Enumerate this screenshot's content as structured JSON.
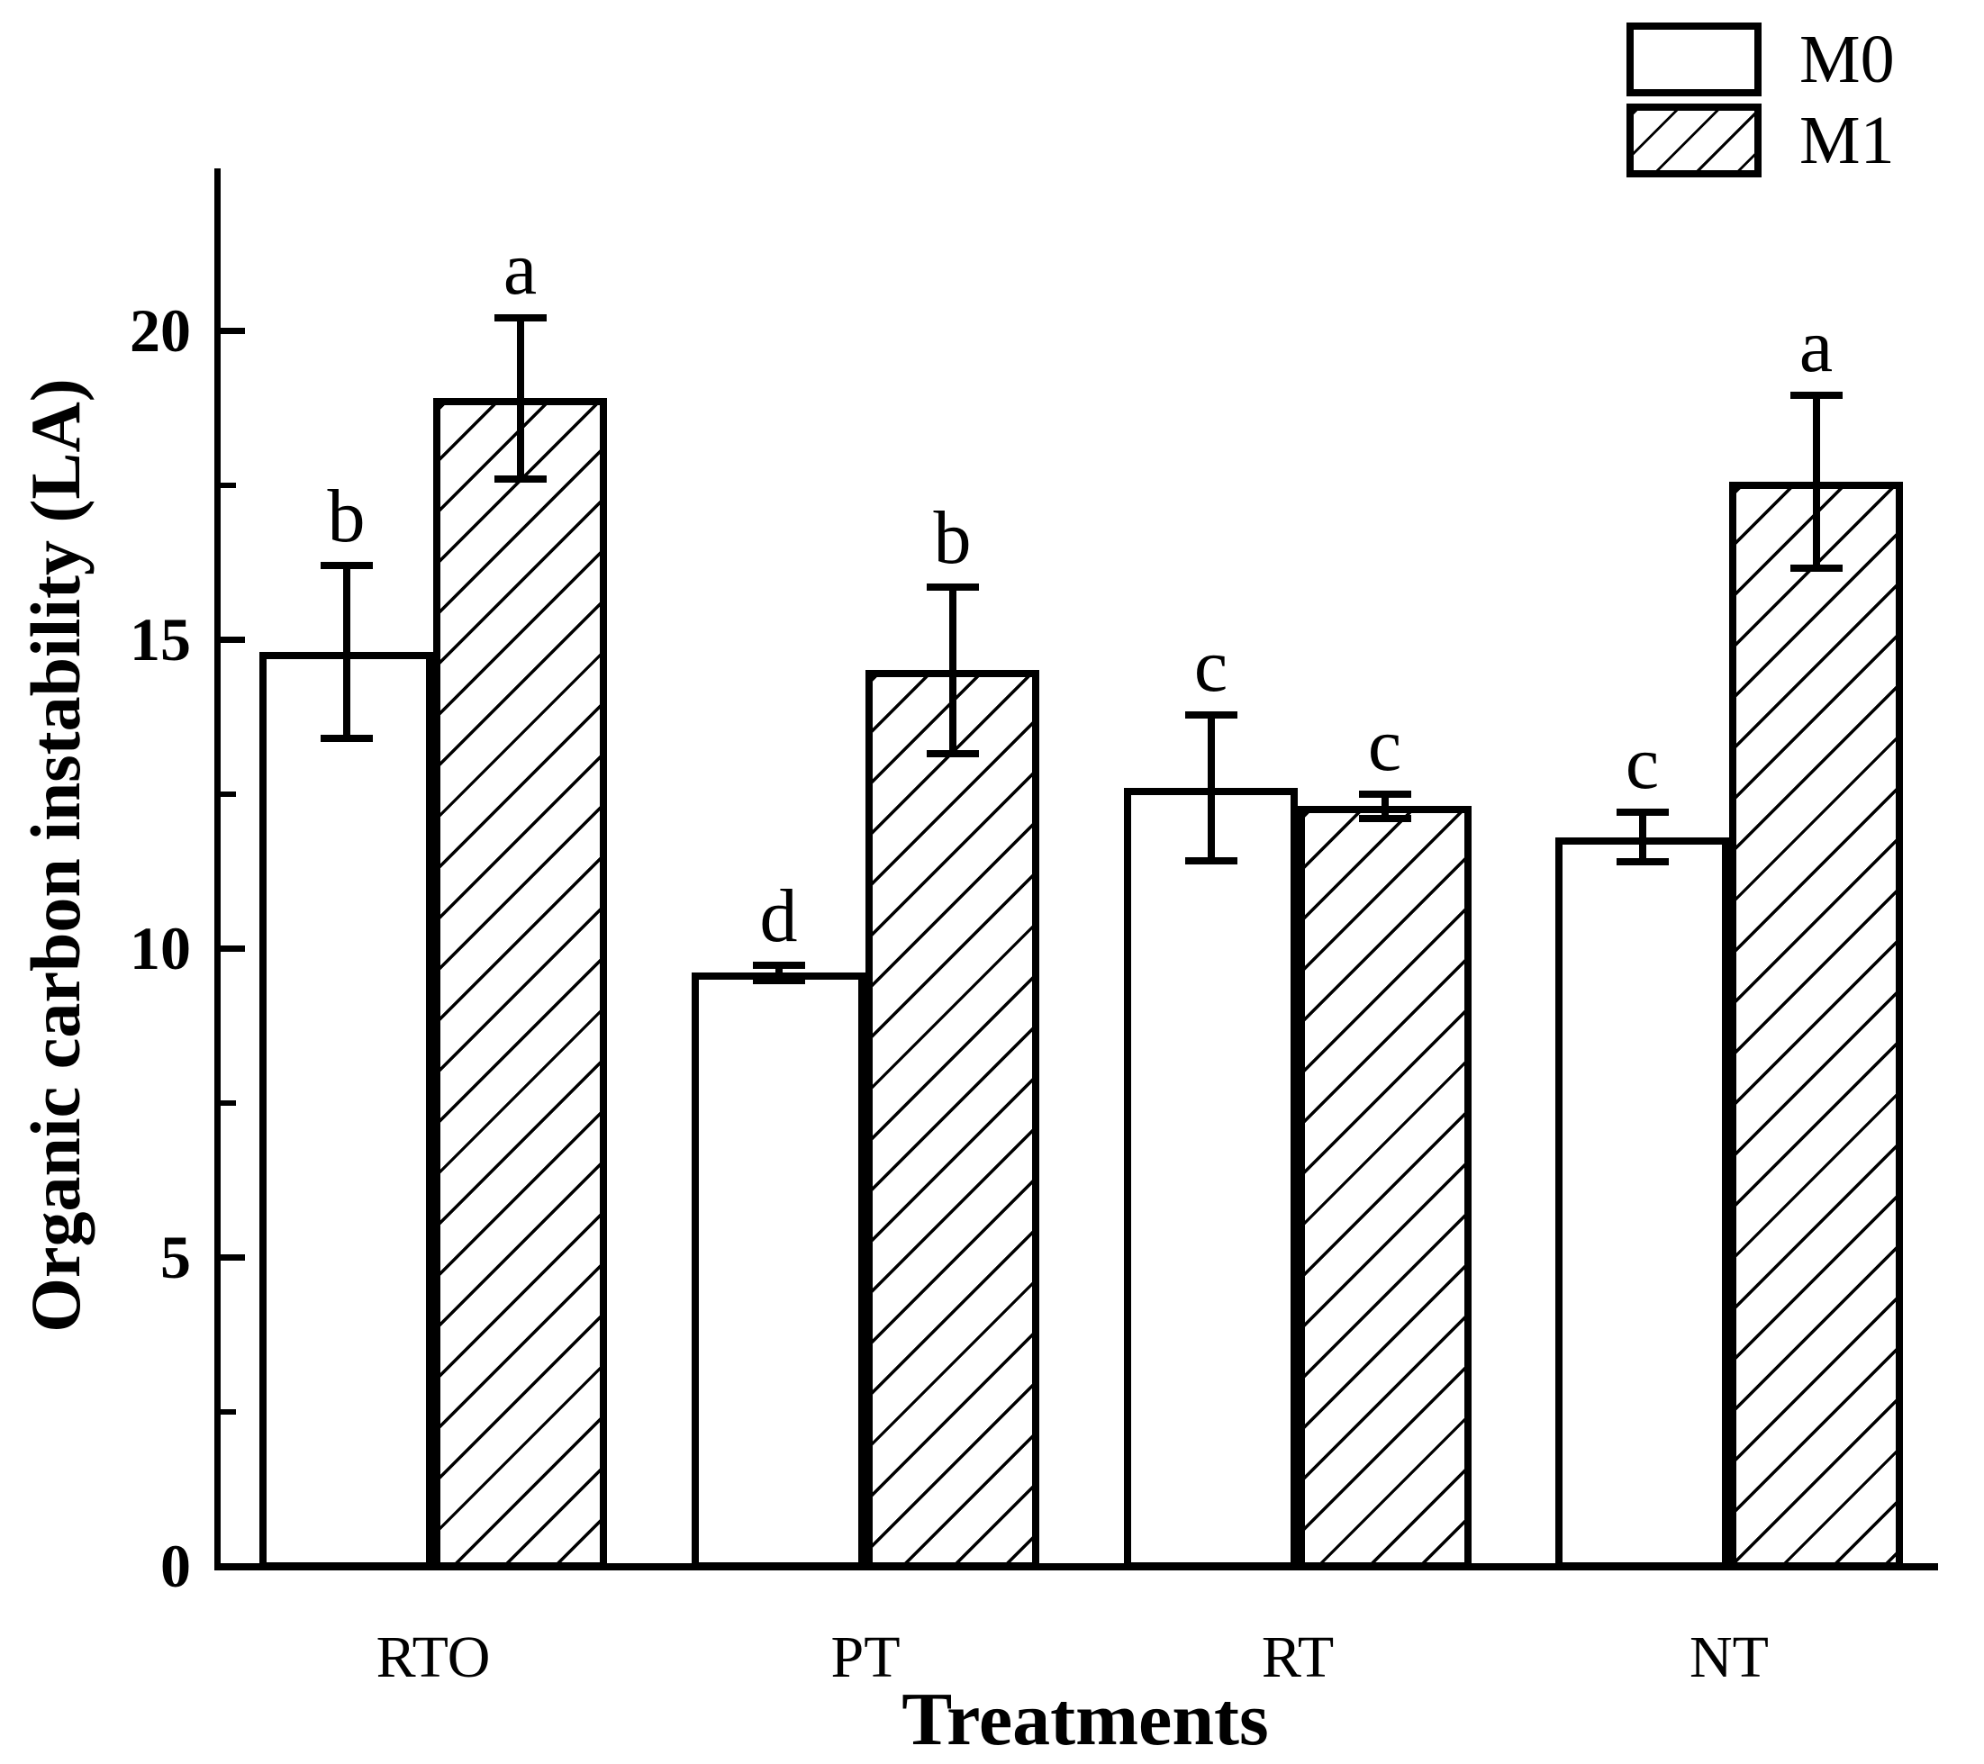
{
  "figure": {
    "background": "#ffffff",
    "foreground": "#000000",
    "y_axis": {
      "title": "Organic carbon instability (LA)",
      "major_ticks": [
        0,
        5,
        10,
        15,
        20
      ],
      "minor_ticks": [
        2.5,
        7.5,
        12.5,
        17.5
      ],
      "max": 22.6
    },
    "x_axis": {
      "title": "Treatments"
    },
    "legend": {
      "items": [
        {
          "label": "M0",
          "pattern": "solid-white"
        },
        {
          "label": "M1",
          "pattern": "diagonal-hatch"
        }
      ]
    }
  },
  "chart_data": {
    "type": "bar",
    "title": "",
    "categories": [
      "RTO",
      "PT",
      "RT",
      "NT"
    ],
    "xlabel": "Treatments",
    "ylabel": "Organic carbon instability (LA)",
    "ylim": [
      0,
      22.6
    ],
    "grid": false,
    "error_bars": true,
    "legend_position": "top-right",
    "series": [
      {
        "name": "M0",
        "fill": "white",
        "values": [
          14.8,
          9.6,
          12.6,
          11.8
        ],
        "errors": [
          1.4,
          0.12,
          1.18,
          0.4
        ],
        "letters": [
          "b",
          "d",
          "c",
          "c"
        ]
      },
      {
        "name": "M1",
        "fill": "hatch",
        "values": [
          18.9,
          14.5,
          12.3,
          17.55
        ],
        "errors": [
          1.3,
          1.35,
          0.2,
          1.4
        ],
        "letters": [
          "a",
          "b",
          "c",
          "a"
        ]
      }
    ]
  }
}
